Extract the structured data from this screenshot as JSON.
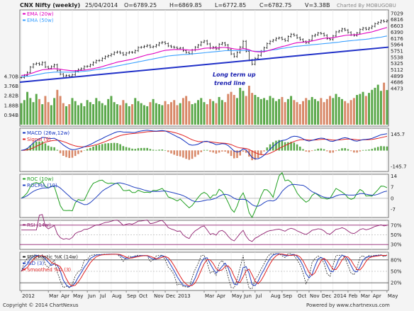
{
  "header": {
    "title": "CNX Nifty (weekly)",
    "date": "25/04/2014",
    "open": "O=6789.25",
    "high": "H=6869.85",
    "low": "L=6772.85",
    "close": "C=6782.75",
    "volume": "V=3.38B",
    "charted_by": "Charted By MOBUGOBU"
  },
  "footer": {
    "copyright": "Copyright © 2014 ChartNexus",
    "powered": "Powered by www.chartnexus.com"
  },
  "colors": {
    "price_up": "#1a1a1a",
    "ema20": "#e000c0",
    "ema50": "#3aa0ff",
    "trendline": "#2030c8",
    "volume_up": "#5aa84a",
    "volume_down": "#d88868",
    "macd": "#1030c0",
    "signal": "#e02020",
    "roc": "#20a020",
    "rocma": "#2040c0",
    "rsi": "#902070",
    "stoch_k": "#202020",
    "stoch_d": "#2040c0",
    "stoch_sd": "#e02020"
  },
  "chart_data": [
    {
      "panel": "price",
      "type": "bar",
      "legend": [
        "EMA (20w)",
        "EMA (50w)"
      ],
      "annotation": "Long term up trend line",
      "y_ticks": [
        "7029",
        "6816",
        "6603",
        "6390",
        "6176",
        "5964",
        "5751",
        "5538",
        "5325",
        "5112",
        "4899",
        "4686",
        "4473"
      ],
      "ylim": [
        4400,
        7050
      ],
      "close": [
        4850,
        4920,
        5020,
        5200,
        5300,
        5330,
        5290,
        5360,
        5210,
        5160,
        5220,
        5280,
        5090,
        4960,
        4900,
        4920,
        4890,
        4940,
        5060,
        5120,
        5150,
        5220,
        5230,
        5280,
        5360,
        5420,
        5430,
        5500,
        5560,
        5590,
        5640,
        5700,
        5720,
        5680,
        5620,
        5680,
        5710,
        5700,
        5760,
        5870,
        5880,
        5910,
        5940,
        5880,
        5900,
        5950,
        6020,
        6050,
        6000,
        5920,
        5890,
        5870,
        5840,
        5850,
        5760,
        5700,
        5660,
        5780,
        5880,
        5950,
        6050,
        6090,
        5990,
        5850,
        5880,
        5820,
        5980,
        6020,
        5950,
        5800,
        5650,
        5560,
        5700,
        5880,
        6080,
        5740,
        5440,
        5300,
        5500,
        5600,
        5740,
        5860,
        6000,
        6080,
        6120,
        6180,
        6200,
        6150,
        6100,
        6240,
        6320,
        6280,
        6200,
        6140,
        6070,
        6030,
        6120,
        6260,
        6300,
        6360,
        6340,
        6280,
        6170,
        6140,
        6260,
        6400,
        6430,
        6500,
        6460,
        6380,
        6300,
        6280,
        6360,
        6480,
        6530,
        6490,
        6530,
        6590,
        6680,
        6720,
        6780,
        6750,
        6783
      ],
      "ema20": [
        4920,
        4930,
        4950,
        4980,
        5010,
        5050,
        5080,
        5110,
        5120,
        5130,
        5140,
        5150,
        5140,
        5130,
        5110,
        5100,
        5090,
        5080,
        5080,
        5090,
        5090,
        5100,
        5110,
        5130,
        5150,
        5170,
        5190,
        5220,
        5250,
        5280,
        5310,
        5340,
        5370,
        5390,
        5410,
        5430,
        5450,
        5470,
        5500,
        5530,
        5560,
        5590,
        5620,
        5640,
        5660,
        5690,
        5720,
        5750,
        5770,
        5780,
        5790,
        5800,
        5800,
        5800,
        5800,
        5790,
        5780,
        5780,
        5790,
        5800,
        5820,
        5840,
        5850,
        5850,
        5850,
        5850,
        5860,
        5870,
        5870,
        5860,
        5840,
        5820,
        5810,
        5810,
        5830,
        5820,
        5790,
        5750,
        5730,
        5720,
        5720,
        5730,
        5750,
        5780,
        5810,
        5840,
        5870,
        5900,
        5920,
        5950,
        5980,
        6010,
        6030,
        6040,
        6050,
        6060,
        6070,
        6090,
        6110,
        6140,
        6160,
        6180,
        6190,
        6190,
        6200,
        6220,
        6240,
        6260,
        6280,
        6290,
        6290,
        6300,
        6300,
        6320,
        6340,
        6360,
        6380,
        6400,
        6430,
        6460,
        6490,
        6520,
        6550
      ],
      "ema50": [
        4880,
        4885,
        4890,
        4900,
        4920,
        4940,
        4960,
        4980,
        5000,
        5010,
        5020,
        5030,
        5030,
        5030,
        5030,
        5030,
        5030,
        5030,
        5040,
        5040,
        5050,
        5060,
        5070,
        5080,
        5100,
        5110,
        5130,
        5140,
        5160,
        5180,
        5200,
        5220,
        5240,
        5260,
        5280,
        5300,
        5320,
        5340,
        5360,
        5380,
        5400,
        5420,
        5440,
        5460,
        5480,
        5500,
        5520,
        5540,
        5560,
        5580,
        5590,
        5600,
        5610,
        5620,
        5630,
        5630,
        5640,
        5650,
        5660,
        5670,
        5680,
        5690,
        5700,
        5710,
        5720,
        5730,
        5740,
        5750,
        5760,
        5760,
        5760,
        5760,
        5760,
        5760,
        5770,
        5770,
        5760,
        5750,
        5740,
        5740,
        5740,
        5750,
        5760,
        5770,
        5790,
        5800,
        5820,
        5840,
        5850,
        5870,
        5880,
        5900,
        5910,
        5920,
        5930,
        5940,
        5950,
        5960,
        5970,
        5980,
        5990,
        6000,
        6010,
        6020,
        6030,
        6040,
        6050,
        6070,
        6080,
        6090,
        6100,
        6110,
        6120,
        6130,
        6140,
        6150,
        6160,
        6180,
        6190,
        6210,
        6220,
        6240,
        6260
      ],
      "trendline": {
        "start": 4690,
        "end": 5880
      },
      "volume_ticks": [
        "4.70B",
        "3.76B",
        "2.82B",
        "1.88B",
        "0.94B"
      ],
      "volume_max": 4.7,
      "volume": [
        2.1,
        2.4,
        3.2,
        2.6,
        2.2,
        3.0,
        2.5,
        2.0,
        2.8,
        2.2,
        1.9,
        2.6,
        3.4,
        2.8,
        2.1,
        1.8,
        2.0,
        2.6,
        2.3,
        1.9,
        2.1,
        1.8,
        2.4,
        2.2,
        2.0,
        2.6,
        2.3,
        2.1,
        1.9,
        2.5,
        2.8,
        2.2,
        2.0,
        1.9,
        2.4,
        2.1,
        1.8,
        2.0,
        2.6,
        2.3,
        2.1,
        1.9,
        1.8,
        2.2,
        2.5,
        2.1,
        2.0,
        1.9,
        2.3,
        2.0,
        2.2,
        2.4,
        1.9,
        2.1,
        2.6,
        2.8,
        2.3,
        2.0,
        2.1,
        2.4,
        2.6,
        2.2,
        2.0,
        2.5,
        2.3,
        2.1,
        2.7,
        2.4,
        2.2,
        3.0,
        3.2,
        2.9,
        2.6,
        3.6,
        3.3,
        2.8,
        3.8,
        3.1,
        2.9,
        2.7,
        2.5,
        2.6,
        2.4,
        2.8,
        2.6,
        2.3,
        2.5,
        2.7,
        2.2,
        2.5,
        2.8,
        2.4,
        2.2,
        2.0,
        2.3,
        2.6,
        2.4,
        2.7,
        2.5,
        2.3,
        2.6,
        2.2,
        2.5,
        2.8,
        2.6,
        3.0,
        2.7,
        2.5,
        2.3,
        2.1,
        2.4,
        2.6,
        2.9,
        3.0,
        3.2,
        2.8,
        3.1,
        3.4,
        3.6,
        3.9,
        3.3,
        4.1,
        3.38
      ]
    },
    {
      "panel": "macd",
      "type": "line",
      "legend": [
        "MACD (26w,12w)",
        "Signal (9)"
      ],
      "y_ticks": [
        "145.7",
        "-145.7"
      ],
      "ylim": [
        -190,
        200
      ]
    },
    {
      "panel": "roc",
      "type": "line",
      "legend": [
        "ROC (10w)",
        "ROCMA (10)"
      ],
      "y_ticks": [
        "14",
        "7",
        "0",
        "-7"
      ],
      "ylim": [
        -12,
        15
      ]
    },
    {
      "panel": "rsi",
      "type": "line",
      "legend": [
        "RSI (14w)"
      ],
      "y_ticks": [
        "70%",
        "50%",
        "30%"
      ],
      "ylim": [
        20,
        80
      ]
    },
    {
      "panel": "stochastic",
      "type": "line",
      "legend": [
        "Stochastic %K (14w)",
        "%D (3)",
        "Smoothed %D (3)"
      ],
      "y_ticks": [
        "80%",
        "50%",
        "20%"
      ],
      "ylim": [
        0,
        100
      ]
    }
  ],
  "x_axis": {
    "labels": [
      "2012",
      "Mar",
      "Apr",
      "May",
      "Jun",
      "Jul",
      "Aug",
      "Sep",
      "Oct",
      "Nov",
      "Dec",
      "2013",
      "Mar",
      "Apr",
      "May",
      "Jun",
      "Jul",
      "Aug",
      "Sep",
      "Oct",
      "Nov",
      "Dec",
      "2014",
      "Feb",
      "Mar",
      "Apr",
      "May"
    ],
    "positions_week": [
      0,
      9,
      13,
      17,
      22,
      26,
      30,
      35,
      39,
      44,
      48,
      52,
      61,
      65,
      70,
      74,
      78,
      83,
      87,
      92,
      96,
      100,
      104,
      109,
      113,
      117,
      122
    ]
  }
}
